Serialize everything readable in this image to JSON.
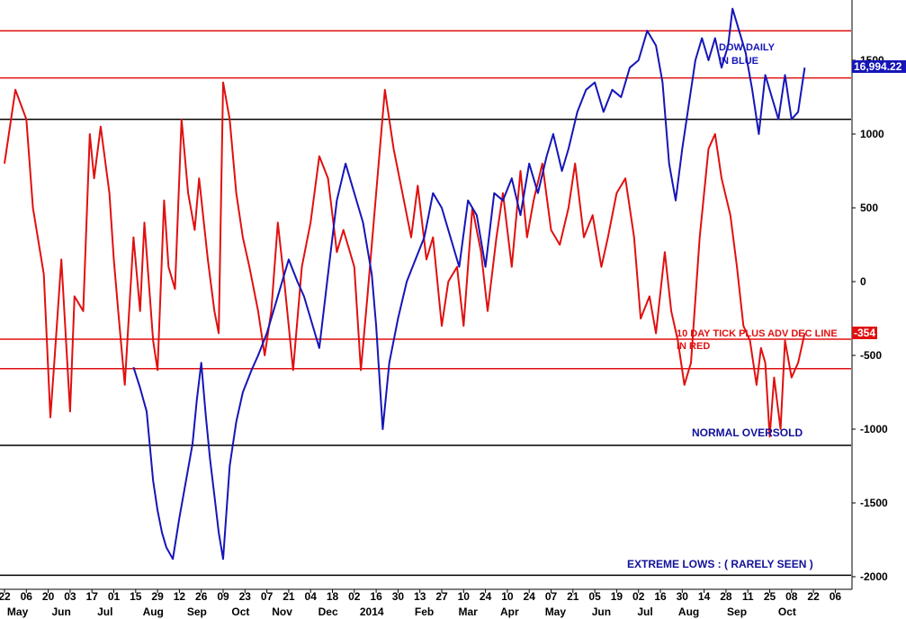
{
  "chart_data": {
    "type": "line",
    "title": "",
    "xlabel": "",
    "ylabel": "",
    "ylim": [
      -2000,
      1800
    ],
    "y_ticks": [
      1500,
      1000,
      500,
      0,
      -500,
      -1000,
      -1500,
      -2000
    ],
    "y_tick_labels": [
      "1500",
      "1000",
      "500",
      "0",
      "-500",
      "-1000",
      "-1500",
      "-2000"
    ],
    "x_day_labels": [
      "22",
      "06",
      "20",
      "03",
      "17",
      "01",
      "15",
      "29",
      "12",
      "26",
      "09",
      "23",
      "07",
      "21",
      "04",
      "18",
      "02",
      "16",
      "30",
      "13",
      "27",
      "10",
      "24",
      "10",
      "24",
      "07",
      "21",
      "05",
      "19",
      "02",
      "16",
      "30",
      "14",
      "28",
      "11",
      "25",
      "08",
      "22",
      "06"
    ],
    "x_month_labels": [
      "May",
      "Jun",
      "Jul",
      "Aug",
      "Sep",
      "Oct",
      "Nov",
      "Dec",
      "2014",
      "Feb",
      "Mar",
      "Apr",
      "May",
      "Jun",
      "Jul",
      "Aug",
      "Sep",
      "Oct"
    ],
    "x_month_label_day_index": [
      0.6,
      2.6,
      4.6,
      6.8,
      8.8,
      10.8,
      12.7,
      14.8,
      16.8,
      19.2,
      21.2,
      23.1,
      25.2,
      27.3,
      29.3,
      31.3,
      33.5,
      35.8
    ],
    "grid": false,
    "legend": "none",
    "reference_lines": [
      {
        "value": 1700,
        "color": "#e01010"
      },
      {
        "value": 1380,
        "color": "#e01010"
      },
      {
        "value": 1100,
        "color": "#000000"
      },
      {
        "value": -390,
        "color": "#e01010"
      },
      {
        "value": -590,
        "color": "#e01010"
      },
      {
        "value": -1110,
        "color": "#000000"
      },
      {
        "value": -1990,
        "color": "#000000"
      }
    ],
    "series": [
      {
        "color": "#e01010",
        "x": [
          0,
          0.5,
          1,
          1.3,
          1.8,
          2.1,
          2.3,
          2.6,
          3.0,
          3.2,
          3.6,
          3.9,
          4.1,
          4.4,
          4.8,
          5.0,
          5.2,
          5.5,
          5.9,
          6.2,
          6.4,
          6.8,
          7.0,
          7.3,
          7.5,
          7.8,
          8.1,
          8.4,
          8.7,
          8.9,
          9.3,
          9.6,
          9.8,
          10.0,
          10.3,
          10.6,
          10.9,
          11.2,
          11.6,
          11.9,
          12.2,
          12.5,
          12.8,
          13.2,
          13.6,
          14.0,
          14.4,
          14.8,
          15.2,
          15.5,
          16.0,
          16.3,
          16.6,
          17.0,
          17.4,
          17.8,
          18.2,
          18.6,
          18.9,
          19.3,
          19.6,
          20.0,
          20.3,
          20.7,
          21.0,
          21.4,
          21.8,
          22.1,
          22.5,
          22.8,
          23.2,
          23.6,
          23.9,
          24.2,
          24.6,
          25.0,
          25.4,
          25.8,
          26.1,
          26.5,
          26.9,
          27.3,
          27.6,
          28.0,
          28.4,
          28.8,
          29.1,
          29.5,
          29.8,
          30.2,
          30.5,
          30.8,
          31.1,
          31.4,
          31.8,
          32.2,
          32.5,
          32.8,
          33.2,
          33.5,
          33.8,
          34.1,
          34.4,
          34.6,
          34.8,
          35.0,
          35.2,
          35.5,
          35.7,
          36.0,
          36.3,
          36.6
        ],
        "values": [
          800,
          1300,
          1100,
          500,
          50,
          -920,
          -500,
          150,
          -880,
          -100,
          -200,
          1000,
          700,
          1050,
          600,
          150,
          -200,
          -700,
          300,
          -200,
          400,
          -400,
          -600,
          550,
          100,
          -50,
          1100,
          600,
          350,
          700,
          150,
          -200,
          -350,
          1350,
          1100,
          600,
          300,
          100,
          -200,
          -500,
          -200,
          400,
          0,
          -600,
          100,
          400,
          850,
          700,
          200,
          350,
          100,
          -600,
          -100,
          600,
          1300,
          900,
          600,
          300,
          650,
          150,
          300,
          -300,
          0,
          100,
          -300,
          500,
          200,
          -200,
          300,
          600,
          100,
          750,
          300,
          550,
          800,
          350,
          250,
          500,
          800,
          300,
          450,
          100,
          300,
          600,
          700,
          300,
          -250,
          -100,
          -350,
          200,
          -200,
          -400,
          -700,
          -550,
          300,
          900,
          1000,
          700,
          450,
          100,
          -300,
          -400,
          -700,
          -450,
          -550,
          -1050,
          -650,
          -1000,
          -400,
          -650,
          -550,
          -350
        ]
      },
      {
        "color": "#1515b8",
        "x": [
          5.9,
          6.2,
          6.5,
          6.8,
          7.0,
          7.2,
          7.4,
          7.7,
          8.0,
          8.3,
          8.6,
          8.8,
          9.0,
          9.2,
          9.4,
          9.6,
          9.8,
          10.0,
          10.3,
          10.6,
          10.9,
          11.3,
          11.6,
          12.0,
          12.3,
          12.6,
          13.0,
          13.4,
          13.7,
          14.0,
          14.4,
          14.8,
          15.2,
          15.6,
          16.0,
          16.4,
          16.8,
          17.0,
          17.3,
          17.6,
          18.0,
          18.4,
          18.8,
          19.2,
          19.6,
          20.0,
          20.4,
          20.8,
          21.2,
          21.6,
          22.0,
          22.4,
          22.8,
          23.2,
          23.6,
          24.0,
          24.4,
          24.8,
          25.1,
          25.5,
          25.8,
          26.2,
          26.6,
          27.0,
          27.4,
          27.8,
          28.2,
          28.6,
          29.0,
          29.4,
          29.8,
          30.1,
          30.4,
          30.7,
          31.0,
          31.3,
          31.6,
          31.9,
          32.2,
          32.5,
          32.8,
          33.1,
          33.3,
          33.6,
          33.9,
          34.2,
          34.5,
          34.8,
          35.1,
          35.4,
          35.7,
          36.0,
          36.3,
          36.6
        ],
        "values": [
          -580,
          -720,
          -880,
          -1350,
          -1550,
          -1700,
          -1800,
          -1880,
          -1600,
          -1350,
          -1100,
          -800,
          -550,
          -900,
          -1200,
          -1450,
          -1700,
          -1880,
          -1250,
          -950,
          -750,
          -600,
          -500,
          -350,
          -200,
          -50,
          150,
          0,
          -100,
          -250,
          -450,
          50,
          550,
          800,
          600,
          400,
          50,
          -300,
          -1000,
          -550,
          -250,
          0,
          150,
          300,
          600,
          500,
          300,
          100,
          550,
          450,
          100,
          600,
          550,
          700,
          450,
          800,
          600,
          850,
          1000,
          750,
          900,
          1150,
          1300,
          1350,
          1150,
          1300,
          1250,
          1450,
          1500,
          1700,
          1600,
          1350,
          800,
          550,
          900,
          1200,
          1500,
          1650,
          1500,
          1650,
          1450,
          1600,
          1850,
          1700,
          1550,
          1300,
          1000,
          1400,
          1250,
          1100,
          1400,
          1100,
          1150,
          1450
        ]
      }
    ],
    "annotations": {
      "dow_line1": "DOW DAILY",
      "dow_line2": "IN BLUE",
      "tick_line1": "10 DAY TICK PLUS ADV DEC LINE",
      "tick_line2": "IN RED",
      "oversold": "NORMAL OVERSOLD",
      "extreme": "EXTREME LOWS : ( RARELY SEEN )"
    },
    "last_value_tags": {
      "dow": "16,994.22",
      "tick": "-354"
    },
    "colors": {
      "red": "#e01010",
      "blue": "#1515b8",
      "dow_tag": "#1515b8",
      "tick_tag": "#e01010"
    }
  }
}
